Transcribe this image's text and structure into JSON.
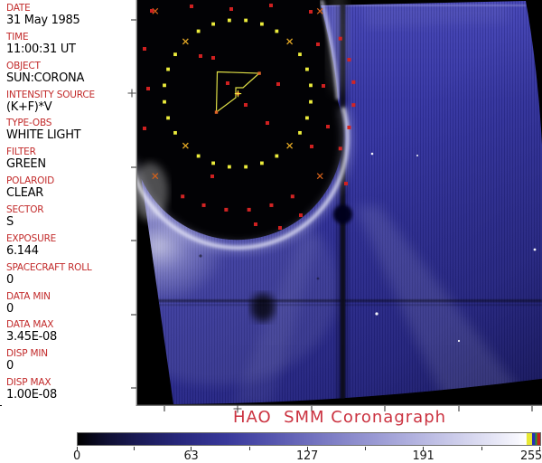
{
  "metadata_panel": {
    "fields": [
      {
        "label": "DATE",
        "value": "31 May 1985"
      },
      {
        "label": "TIME",
        "value": "11:00:31 UT"
      },
      {
        "label": "OBJECT",
        "value": "SUN:CORONA"
      },
      {
        "label": "INTENSITY SOURCE",
        "value": "(K+F)*V"
      },
      {
        "label": "TYPE-OBS",
        "value": "WHITE LIGHT"
      },
      {
        "label": "FILTER",
        "value": "GREEN"
      },
      {
        "label": "POLAROID",
        "value": "CLEAR"
      },
      {
        "label": "SECTOR",
        "value": "S"
      },
      {
        "label": "EXPOSURE",
        "value": "6.144"
      },
      {
        "label": "SPACECRAFT ROLL",
        "value": "0"
      },
      {
        "label": "DATA MIN",
        "value": "0"
      },
      {
        "label": "DATA MAX",
        "value": "3.45E-08"
      },
      {
        "label": "DISP MIN",
        "value": "0"
      },
      {
        "label": "DISP MAX",
        "value": "1.00E-08"
      }
    ]
  },
  "caption": "HAO  SMM Coronagraph",
  "colorbar": {
    "min": 0,
    "max": 255,
    "tick_labels": [
      "0",
      "63",
      "127",
      "191",
      "255"
    ]
  },
  "colors": {
    "label_red": "#c22a2a",
    "caption_red": "#cb3240",
    "corona_blue": "#32329c",
    "fiducial_red": "#d22424",
    "fiducial_yellow": "#ecec3c"
  }
}
